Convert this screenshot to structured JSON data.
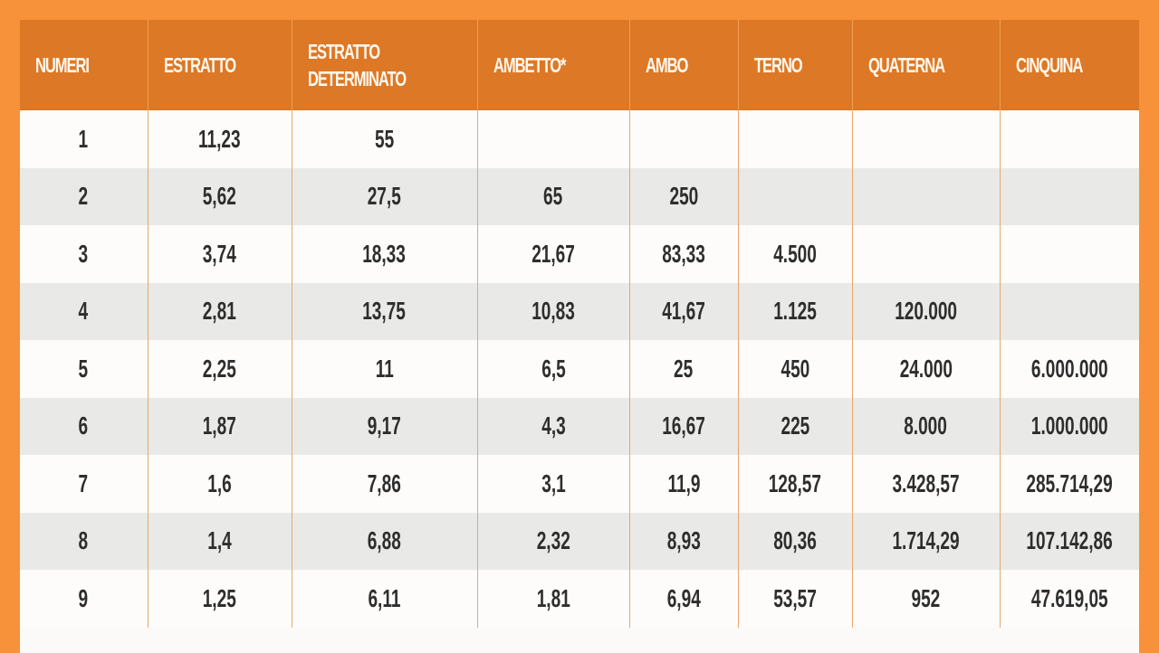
{
  "table": {
    "headers": [
      "NUMERI",
      "ESTRATTO",
      "ESTRATTO DETERMINATO",
      "AMBETTO*",
      "AMBO",
      "TERNO",
      "QUATERNA",
      "CINQUINA"
    ],
    "header_lines": {
      "estratto_determinato_line1": "ESTRATTO",
      "estratto_determinato_line2": "DETERMINATO"
    },
    "rows": [
      [
        "1",
        "11,23",
        "55",
        "",
        "",
        "",
        "",
        ""
      ],
      [
        "2",
        "5,62",
        "27,5",
        "65",
        "250",
        "",
        "",
        ""
      ],
      [
        "3",
        "3,74",
        "18,33",
        "21,67",
        "83,33",
        "4.500",
        "",
        ""
      ],
      [
        "4",
        "2,81",
        "13,75",
        "10,83",
        "41,67",
        "1.125",
        "120.000",
        ""
      ],
      [
        "5",
        "2,25",
        "11",
        "6,5",
        "25",
        "450",
        "24.000",
        "6.000.000"
      ],
      [
        "6",
        "1,87",
        "9,17",
        "4,3",
        "16,67",
        "225",
        "8.000",
        "1.000.000"
      ],
      [
        "7",
        "1,6",
        "7,86",
        "3,1",
        "11,9",
        "128,57",
        "3.428,57",
        "285.714,29"
      ],
      [
        "8",
        "1,4",
        "6,88",
        "2,32",
        "8,93",
        "80,36",
        "1.714,29",
        "107.142,86"
      ],
      [
        "9",
        "1,25",
        "6,11",
        "1,81",
        "6,94",
        "53,57",
        "952",
        "47.619,05"
      ]
    ]
  },
  "colors": {
    "background": "#f7923a",
    "header_bg": "#dd7826",
    "header_text": "#fff8ee",
    "row_light": "#fdfcfa",
    "row_dark": "#e9e9e7",
    "cell_text": "#2e2e2e",
    "divider": "#e5a870"
  }
}
